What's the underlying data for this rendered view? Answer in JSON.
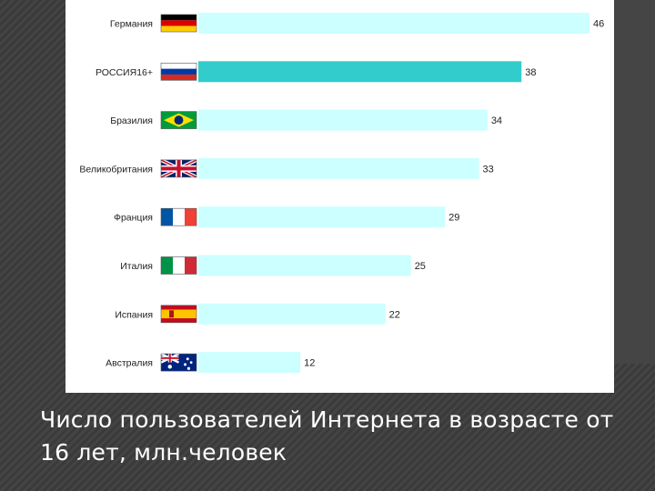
{
  "caption": "Число пользователей Интернета в возрасте от 16 лет, млн.человек",
  "colors": {
    "bar_default": "#ccffff",
    "bar_highlight": "#33cccc",
    "background": "#3d3d3d",
    "chart_bg": "#ffffff",
    "caption_text": "#ffffff"
  },
  "chart_data": {
    "type": "bar",
    "orientation": "horizontal",
    "categories": [
      "Германия",
      "РОССИЯ16+",
      "Бразилия",
      "Великобритания",
      "Франция",
      "Италия",
      "Испания",
      "Австралия"
    ],
    "flags": [
      "germany-flag",
      "russia-flag",
      "brazil-flag",
      "uk-flag",
      "france-flag",
      "italy-flag",
      "spain-flag",
      "australia-flag"
    ],
    "values": [
      46,
      38,
      34,
      33,
      29,
      25,
      22,
      12
    ],
    "value_labels": [
      "46",
      "38",
      "34",
      "33",
      "29",
      "25",
      "22",
      "12"
    ],
    "highlight": "РОССИЯ16+",
    "xlim": [
      0,
      46
    ],
    "grid": false,
    "legend": "none"
  }
}
